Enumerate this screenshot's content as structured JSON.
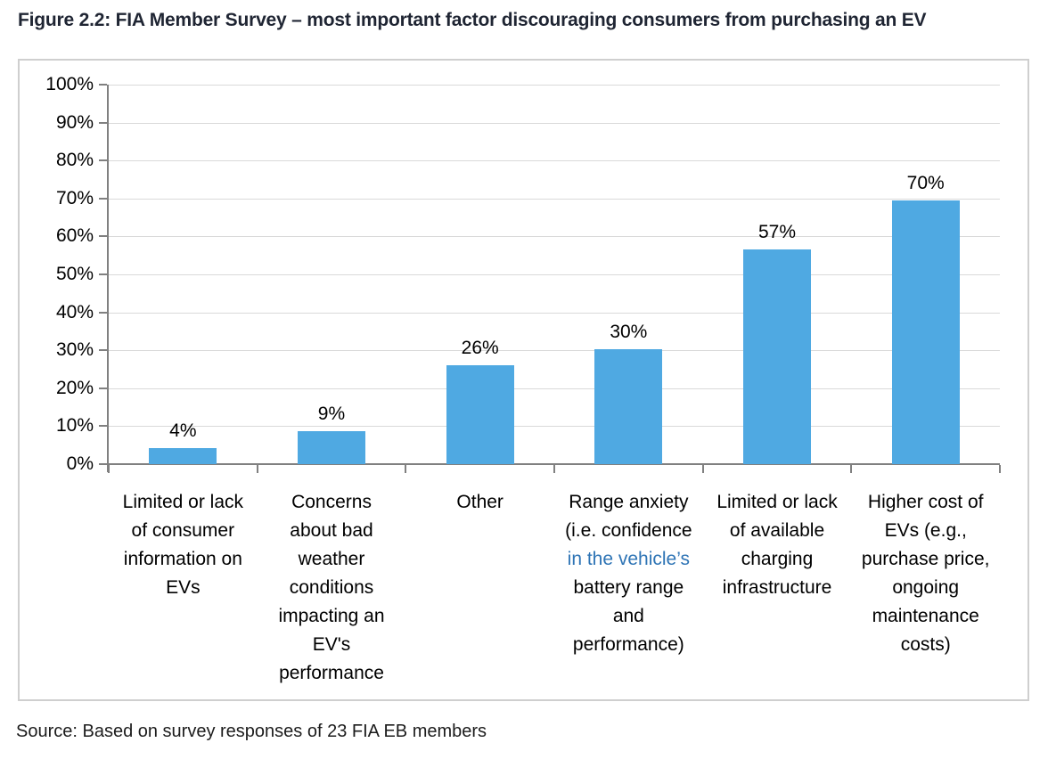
{
  "figure": {
    "title": "Figure 2.2: FIA Member Survey – most important factor discouraging consumers from purchasing an EV",
    "source": "Source: Based on survey responses of 23 FIA EB members"
  },
  "chart_data": {
    "type": "bar",
    "title": "FIA Member Survey – most important factor discouraging consumers from purchasing an EV",
    "categories": [
      "Limited or lack of consumer information on EVs",
      "Concerns about bad weather conditions impacting an EV's performance",
      "Other",
      "Range anxiety (i.e. confidence in the vehicle’s battery range and performance)",
      "Limited or lack of available charging infrastructure",
      "Higher cost of EVs (e.g., purchase price, ongoing maintenance costs)"
    ],
    "category_label_lines": [
      [
        "Limited or lack",
        "of consumer",
        "information on",
        "EVs"
      ],
      [
        "Concerns",
        "about bad",
        "weather",
        "conditions",
        "impacting an",
        "EV's",
        "performance"
      ],
      [
        "Other"
      ],
      [
        "Range anxiety",
        "(i.e. confidence",
        "in the vehicle’s",
        "battery range",
        "and",
        "performance)"
      ],
      [
        "Limited or lack",
        "of available",
        "charging",
        "infrastructure"
      ],
      [
        "Higher cost of",
        "EVs (e.g.,",
        "purchase price,",
        "ongoing",
        "maintenance",
        "costs)"
      ]
    ],
    "highlighted_label_line": {
      "category_index": 3,
      "line_index": 2
    },
    "values": [
      4,
      9,
      26,
      30,
      57,
      70
    ],
    "values_exact_pct": [
      4.3,
      8.7,
      26.1,
      30.4,
      56.5,
      69.6
    ],
    "data_labels": [
      "4%",
      "9%",
      "26%",
      "30%",
      "57%",
      "70%"
    ],
    "y_ticks": [
      "0%",
      "10%",
      "20%",
      "30%",
      "40%",
      "50%",
      "60%",
      "70%",
      "80%",
      "90%",
      "100%"
    ],
    "ylim": [
      0,
      100
    ],
    "xlabel": "",
    "ylabel": "",
    "grid": true,
    "legend": false,
    "colors": {
      "bar": "#4FA9E2",
      "gridline": "#D9D9D9",
      "axis": "#808080",
      "frame_border": "#CFCFCF",
      "highlight_text": "#2E74B5",
      "title_text": "#1F2533"
    }
  }
}
